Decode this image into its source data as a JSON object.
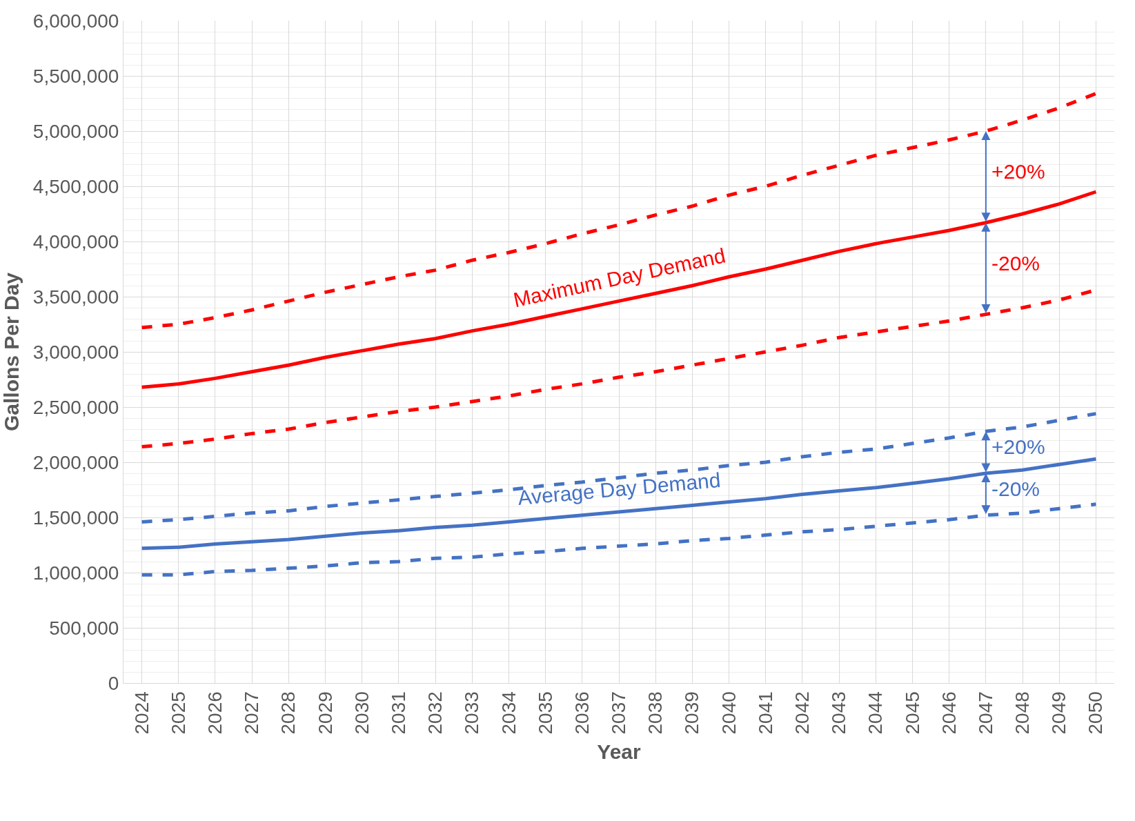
{
  "chart_data": {
    "type": "line",
    "xlabel": "Year",
    "ylabel": "Gallons Per Day",
    "categories": [
      "2024",
      "2025",
      "2026",
      "2027",
      "2028",
      "2029",
      "2030",
      "2031",
      "2032",
      "2033",
      "2034",
      "2035",
      "2036",
      "2037",
      "2038",
      "2039",
      "2040",
      "2041",
      "2042",
      "2043",
      "2044",
      "2045",
      "2046",
      "2047",
      "2048",
      "2049",
      "2050"
    ],
    "series": [
      {
        "color": "#ff0000",
        "line_style": "dashed",
        "values": [
          3220000,
          3250000,
          3310000,
          3380000,
          3460000,
          3540000,
          3610000,
          3680000,
          3740000,
          3830000,
          3900000,
          3980000,
          4070000,
          4150000,
          4240000,
          4320000,
          4420000,
          4500000,
          4600000,
          4690000,
          4780000,
          4850000,
          4920000,
          5000000,
          5100000,
          5210000,
          5340000
        ]
      },
      {
        "name": "Maximum Day Demand",
        "color": "#ff0000",
        "line_style": "solid",
        "values": [
          2680000,
          2710000,
          2760000,
          2820000,
          2880000,
          2950000,
          3010000,
          3070000,
          3120000,
          3190000,
          3250000,
          3320000,
          3390000,
          3460000,
          3530000,
          3600000,
          3680000,
          3750000,
          3830000,
          3910000,
          3980000,
          4040000,
          4100000,
          4170000,
          4250000,
          4340000,
          4450000
        ]
      },
      {
        "color": "#ff0000",
        "line_style": "dashed",
        "values": [
          2140000,
          2170000,
          2210000,
          2260000,
          2300000,
          2360000,
          2410000,
          2460000,
          2500000,
          2550000,
          2600000,
          2660000,
          2710000,
          2770000,
          2820000,
          2880000,
          2940000,
          3000000,
          3060000,
          3130000,
          3180000,
          3230000,
          3280000,
          3340000,
          3400000,
          3470000,
          3560000
        ]
      },
      {
        "color": "#4472c4",
        "line_style": "dashed",
        "values": [
          1460000,
          1480000,
          1510000,
          1540000,
          1560000,
          1600000,
          1630000,
          1660000,
          1690000,
          1720000,
          1750000,
          1790000,
          1820000,
          1860000,
          1900000,
          1930000,
          1970000,
          2000000,
          2050000,
          2090000,
          2120000,
          2170000,
          2220000,
          2280000,
          2320000,
          2380000,
          2440000
        ]
      },
      {
        "name": "Average Day Demand",
        "color": "#4472c4",
        "line_style": "solid",
        "values": [
          1220000,
          1230000,
          1260000,
          1280000,
          1300000,
          1330000,
          1360000,
          1380000,
          1410000,
          1430000,
          1460000,
          1490000,
          1520000,
          1550000,
          1580000,
          1610000,
          1640000,
          1670000,
          1710000,
          1740000,
          1770000,
          1810000,
          1850000,
          1900000,
          1930000,
          1980000,
          2030000
        ]
      },
      {
        "color": "#4472c4",
        "line_style": "dashed",
        "values": [
          980000,
          980000,
          1010000,
          1020000,
          1040000,
          1060000,
          1090000,
          1100000,
          1130000,
          1140000,
          1170000,
          1190000,
          1220000,
          1240000,
          1260000,
          1290000,
          1310000,
          1340000,
          1370000,
          1390000,
          1420000,
          1450000,
          1480000,
          1520000,
          1540000,
          1580000,
          1620000
        ]
      }
    ],
    "ylim": [
      0,
      6000000
    ],
    "yticks": [
      {
        "value": 0,
        "label": "0"
      },
      {
        "value": 500000,
        "label": "500,000"
      },
      {
        "value": 1000000,
        "label": "1,000,000"
      },
      {
        "value": 1500000,
        "label": "1,500,000"
      },
      {
        "value": 2000000,
        "label": "2,000,000"
      },
      {
        "value": 2500000,
        "label": "2,500,000"
      },
      {
        "value": 3000000,
        "label": "3,000,000"
      },
      {
        "value": 3500000,
        "label": "3,500,000"
      },
      {
        "value": 4000000,
        "label": "4,000,000"
      },
      {
        "value": 4500000,
        "label": "4,500,000"
      },
      {
        "value": 5000000,
        "label": "5,000,000"
      },
      {
        "value": 5500000,
        "label": "5,500,000"
      },
      {
        "value": 6000000,
        "label": "6,000,000"
      }
    ],
    "annotations": [
      {
        "text": "+20%",
        "x": "2047",
        "y": 5000000
      },
      {
        "text": "-20%",
        "x": "2047",
        "y": 4170000
      },
      {
        "text": "+20%",
        "x": "2047",
        "y": 2280000
      },
      {
        "text": "-20%",
        "x": "2047",
        "y": 1900000
      }
    ],
    "grid": true,
    "legend": false,
    "marker": "none"
  }
}
